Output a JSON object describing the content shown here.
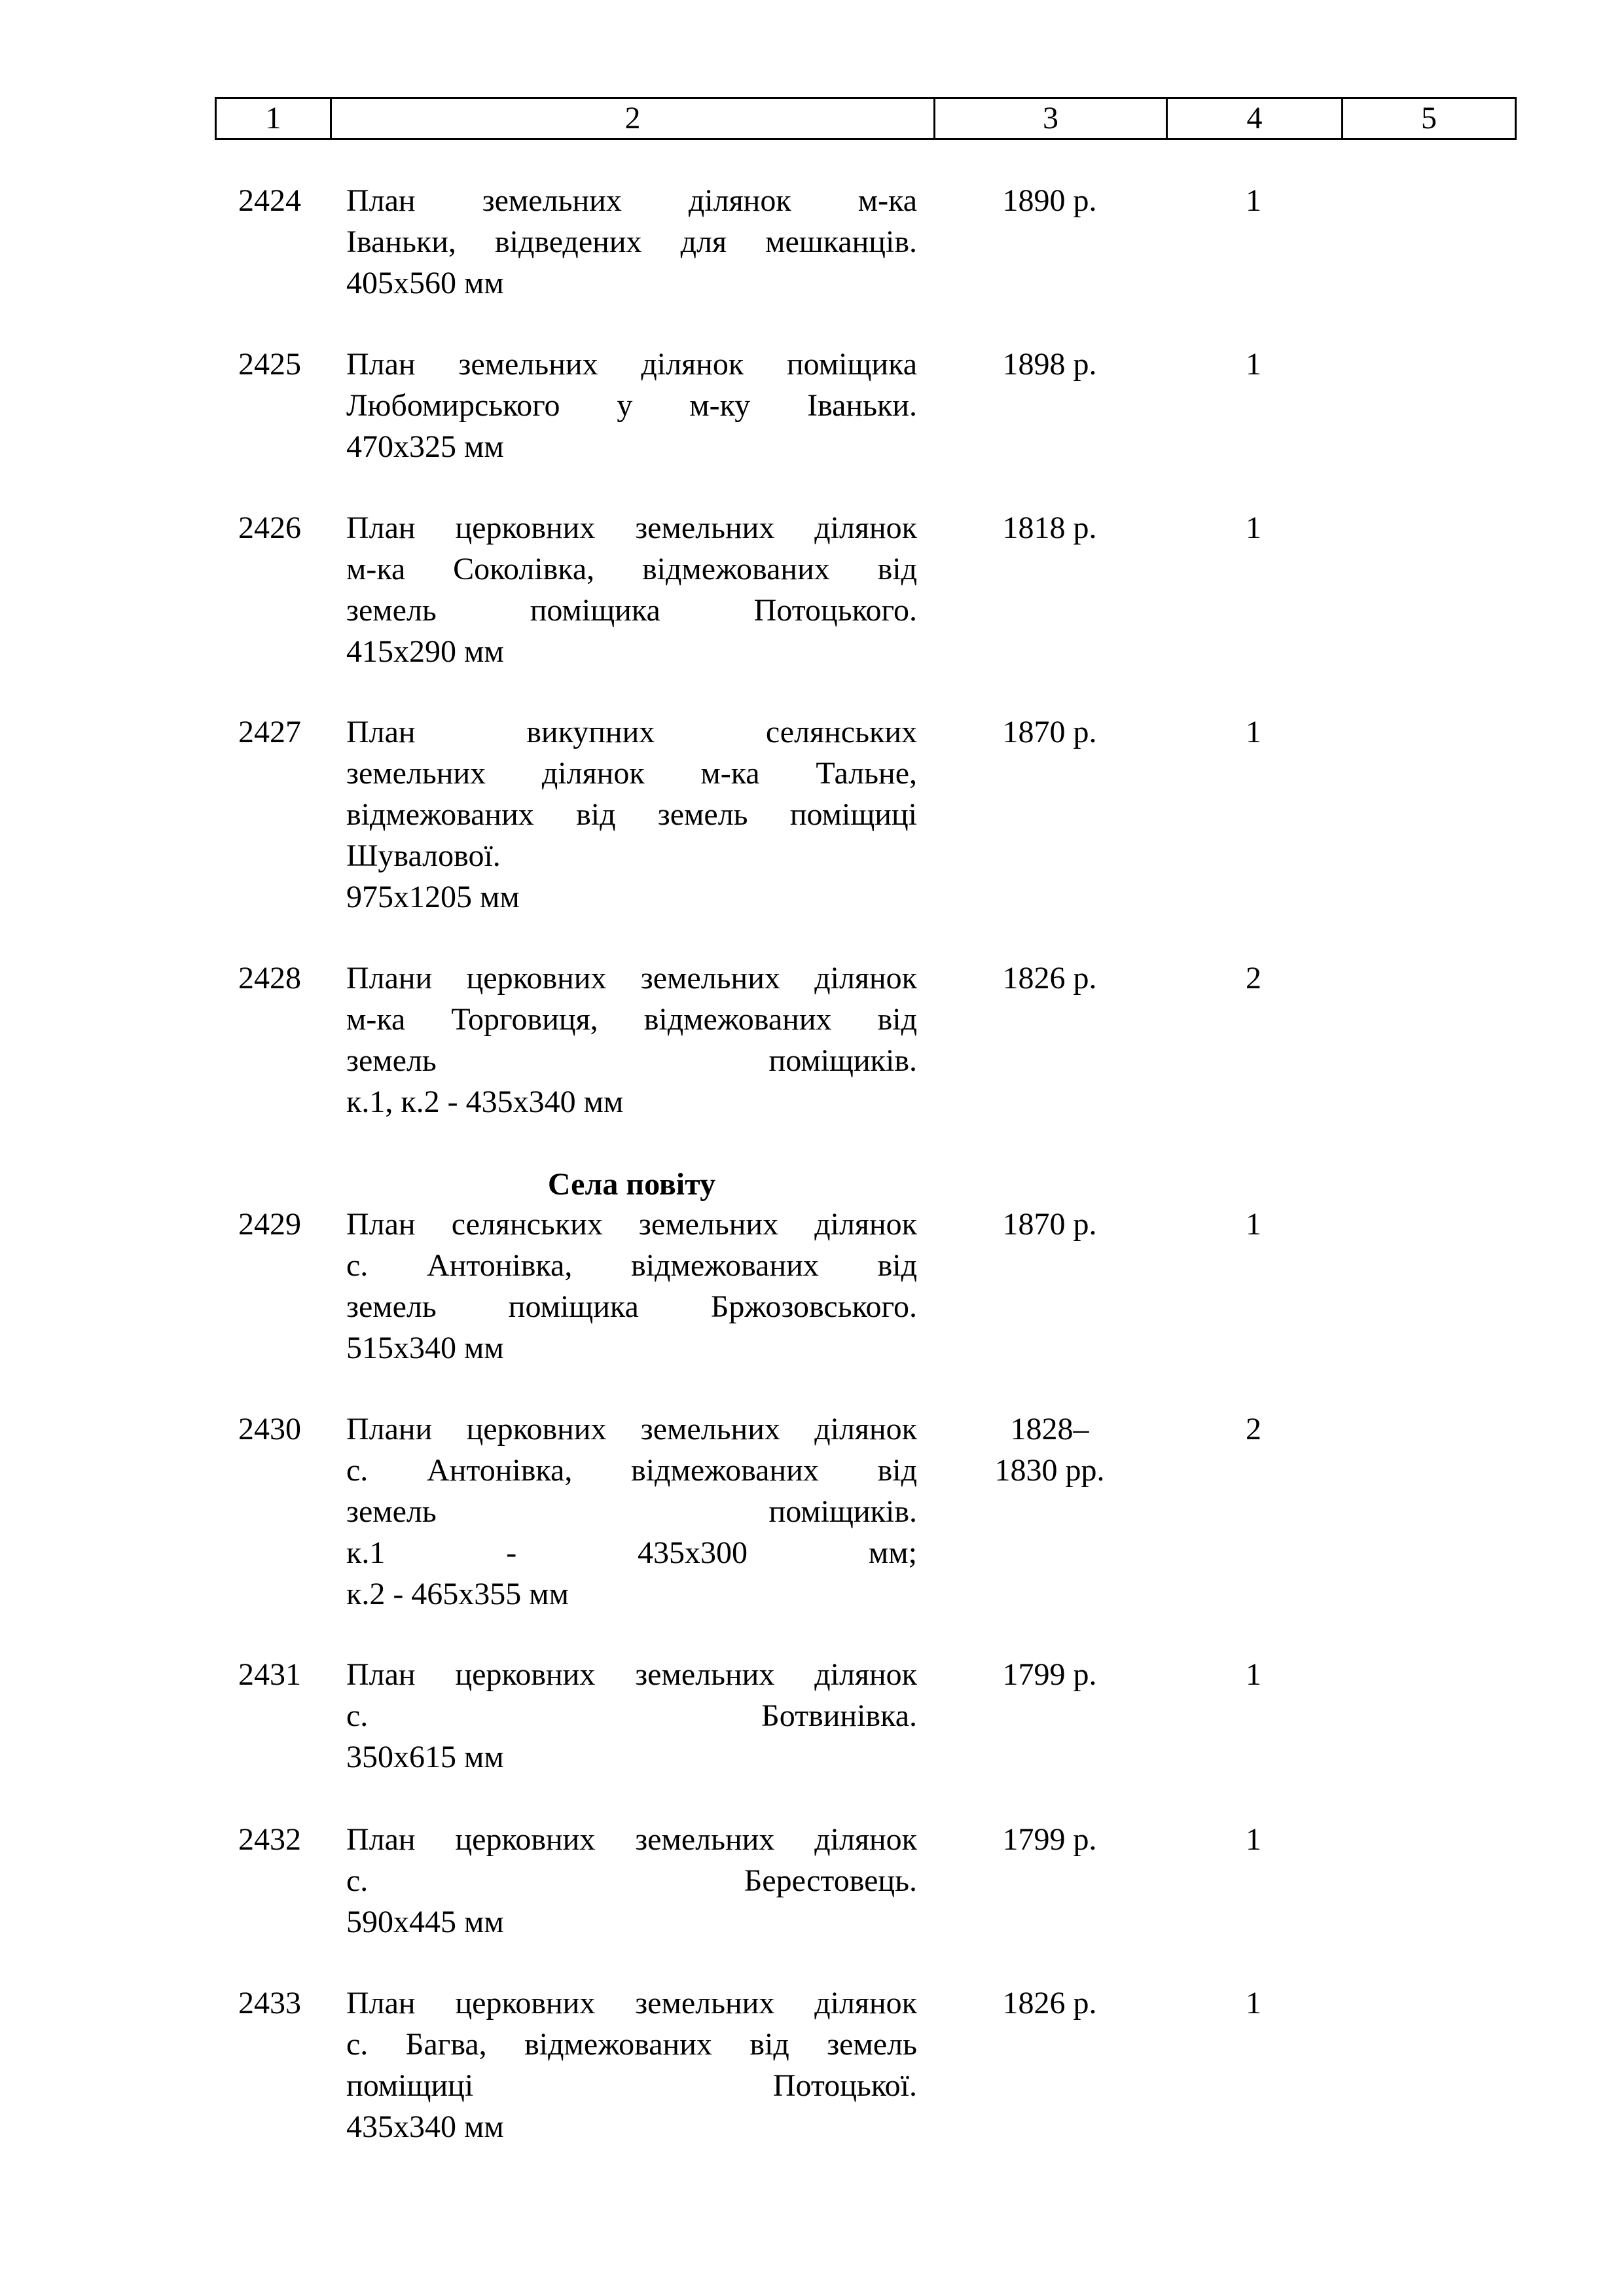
{
  "header": [
    "1",
    "2",
    "3",
    "4",
    "5"
  ],
  "entries": [
    {
      "num": "2424",
      "lines": [
        "План земельних ділянок м-ка",
        "Іваньки, відведених для мешканців.",
        "405x560 мм"
      ],
      "year": [
        "1890 р."
      ],
      "count": "1"
    },
    {
      "num": "2425",
      "lines": [
        "План земельних ділянок поміщика",
        "Любомирського у м-ку Іваньки.",
        "470x325 мм"
      ],
      "year": [
        "1898 р."
      ],
      "count": "1"
    },
    {
      "num": "2426",
      "lines": [
        "План церковних земельних ділянок",
        "м-ка Соколівка, відмежованих від",
        "земель поміщика Потоцького.",
        "415x290 мм"
      ],
      "year": [
        "1818 р."
      ],
      "count": "1"
    },
    {
      "num": "2427",
      "lines": [
        "План викупних селянських",
        "земельних ділянок м-ка Тальне,",
        "відмежованих від земель поміщиці",
        "Шувалової.",
        "975x1205 мм"
      ],
      "year": [
        "1870 р."
      ],
      "count": "1"
    },
    {
      "num": "2428",
      "lines": [
        "Плани церковних земельних ділянок",
        "м-ка Торговиця, відмежованих від",
        "земель поміщиків.",
        "к.1, к.2 - 435x340 мм"
      ],
      "year": [
        "1826 р."
      ],
      "count": "2"
    },
    {
      "num": "2429",
      "lines": [
        "План селянських земельних ділянок",
        "с. Антонівка, відмежованих від",
        "земель поміщика Бржозовського.",
        "515x340 мм"
      ],
      "year": [
        "1870 р."
      ],
      "count": "1"
    },
    {
      "num": "2430",
      "lines": [
        "Плани церковних земельних ділянок",
        "с. Антонівка, відмежованих від",
        "земель поміщиків.",
        "к.1 - 435x300 мм;",
        "к.2 - 465x355 мм"
      ],
      "year": [
        "1828–",
        "1830 рр."
      ],
      "count": "2"
    },
    {
      "num": "2431",
      "lines": [
        "План церковних земельних ділянок",
        "с. Ботвинівка.",
        "350x615 мм"
      ],
      "year": [
        "1799 р."
      ],
      "count": "1"
    },
    {
      "num": "2432",
      "lines": [
        "План церковних земельних ділянок",
        "с. Берестовець.",
        "590x445 мм"
      ],
      "year": [
        "1799 р."
      ],
      "count": "1"
    },
    {
      "num": "2433",
      "lines": [
        "План церковних земельних ділянок",
        "с. Багва, відмежованих від земель",
        "поміщиці Потоцької.",
        "435x340 мм"
      ],
      "year": [
        "1826 р."
      ],
      "count": "1"
    }
  ],
  "section_heading": "Села повіту"
}
